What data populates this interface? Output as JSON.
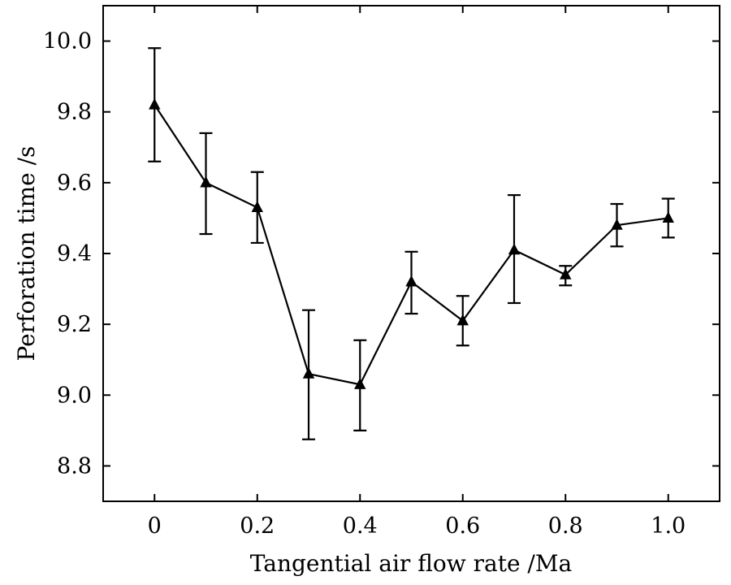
{
  "chart_data": {
    "type": "line",
    "xlabel": "Tangential air flow rate /Ma",
    "ylabel": "Perforation time /s",
    "xlim": [
      -0.1,
      1.1
    ],
    "ylim": [
      8.7,
      10.1
    ],
    "x_ticks": [
      0,
      0.2,
      0.4,
      0.6,
      0.8,
      1.0
    ],
    "x_tick_labels": [
      "0",
      "0.2",
      "0.4",
      "0.6",
      "0.8",
      "1.0"
    ],
    "y_ticks": [
      8.8,
      9.0,
      9.2,
      9.4,
      9.6,
      9.8,
      10.0
    ],
    "y_tick_labels": [
      "8.8",
      "9.0",
      "9.2",
      "9.4",
      "9.6",
      "9.8",
      "10.0"
    ],
    "grid": false,
    "marker": "triangle",
    "series": [
      {
        "x": [
          0,
          0.1,
          0.2,
          0.3,
          0.4,
          0.5,
          0.6,
          0.7,
          0.8,
          0.9,
          1.0
        ],
        "y": [
          9.82,
          9.6,
          9.53,
          9.06,
          9.03,
          9.32,
          9.21,
          9.41,
          9.34,
          9.48,
          9.5
        ],
        "err_low": [
          9.66,
          9.455,
          9.43,
          8.875,
          8.9,
          9.23,
          9.14,
          9.26,
          9.31,
          9.42,
          9.445
        ],
        "err_high": [
          9.98,
          9.74,
          9.63,
          9.24,
          9.155,
          9.405,
          9.28,
          9.565,
          9.365,
          9.54,
          9.555
        ]
      }
    ]
  }
}
